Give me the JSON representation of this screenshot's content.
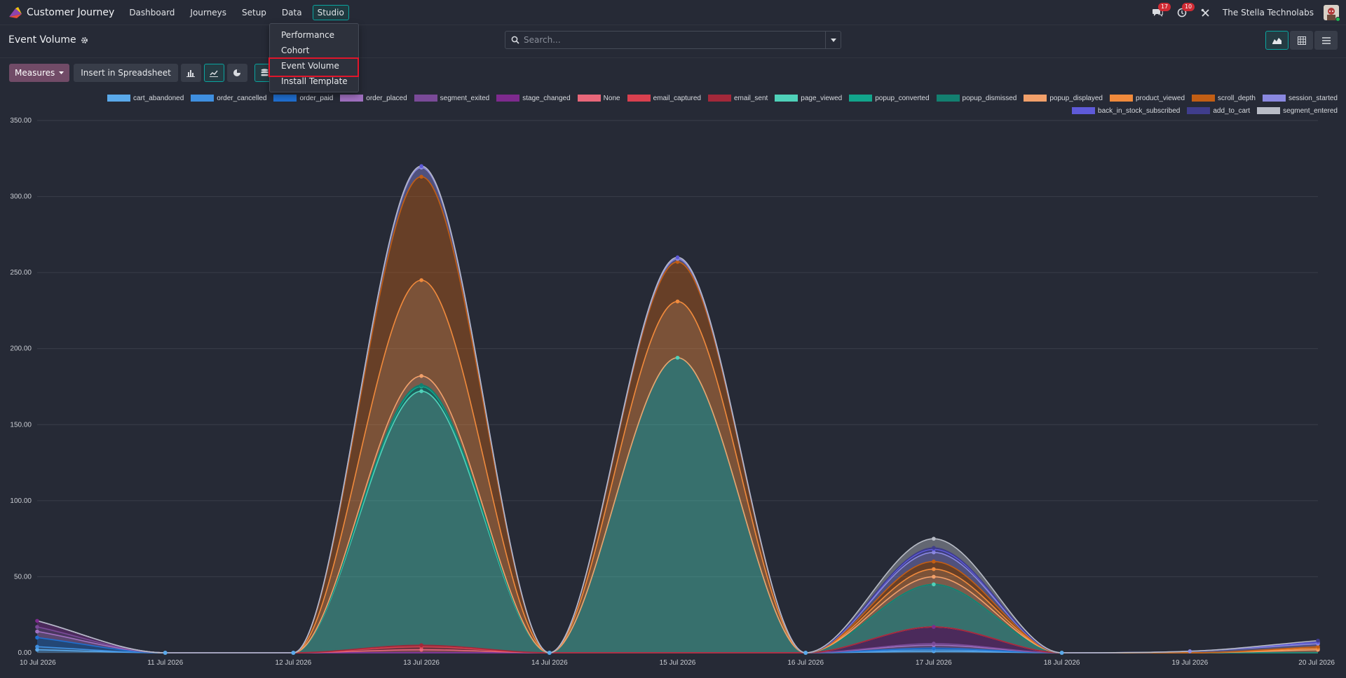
{
  "topbar": {
    "app_name": "Customer Journey",
    "nav": [
      "Dashboard",
      "Journeys",
      "Setup",
      "Data",
      "Studio"
    ],
    "messages_badge": "17",
    "activity_badge": "10",
    "company": "The Stella Technolabs"
  },
  "studio_menu": {
    "items": [
      "Performance",
      "Cohort",
      "Event Volume",
      "Install Template"
    ],
    "highlighted": "Event Volume"
  },
  "control_panel": {
    "title": "Event Volume",
    "search_placeholder": "Search..."
  },
  "toolbar": {
    "measures_label": "Measures",
    "insert_label": "Insert in Spreadsheet"
  },
  "colors": {
    "accent": "#0aa5a0",
    "primary_button": "#714b67",
    "highlight_box": "#e0162b",
    "badge": "#d02b34"
  },
  "chart_data": {
    "type": "area",
    "stacked": true,
    "smooth": true,
    "grid": true,
    "legend_position": "top-right",
    "x": [
      "10 Jul 2026",
      "11 Jul 2026",
      "12 Jul 2026",
      "13 Jul 2026",
      "14 Jul 2026",
      "15 Jul 2026",
      "16 Jul 2026",
      "17 Jul 2026",
      "18 Jul 2026",
      "19 Jul 2026",
      "20 Jul 2026"
    ],
    "ylim": [
      0,
      350
    ],
    "yticks": [
      "0.00",
      "50.00",
      "100.00",
      "150.00",
      "200.00",
      "250.00",
      "300.00",
      "350.00"
    ],
    "series": [
      {
        "name": "cart_abandoned",
        "color": "#5aa9ea",
        "values": [
          2,
          0,
          0,
          0,
          0,
          0,
          0,
          1,
          0,
          0,
          0
        ]
      },
      {
        "name": "order_cancelled",
        "color": "#3f8fe0",
        "values": [
          2,
          0,
          0,
          0,
          0,
          0,
          0,
          1,
          0,
          0,
          0
        ]
      },
      {
        "name": "order_paid",
        "color": "#1f6fd0",
        "values": [
          6,
          0,
          0,
          0,
          0,
          0,
          0,
          1,
          0,
          0,
          0
        ]
      },
      {
        "name": "order_placed",
        "color": "#a070c0",
        "values": [
          4,
          0,
          0,
          0,
          0,
          0,
          0,
          2,
          0,
          0,
          0
        ]
      },
      {
        "name": "segment_exited",
        "color": "#7a4a98",
        "values": [
          3,
          0,
          0,
          0,
          0,
          0,
          0,
          1,
          0,
          0,
          0
        ]
      },
      {
        "name": "stage_changed",
        "color": "#7e2a8e",
        "values": [
          4,
          0,
          0,
          0,
          0,
          0,
          0,
          11,
          0,
          0,
          0
        ]
      },
      {
        "name": "None",
        "color": "#e8677a",
        "values": [
          0,
          0,
          0,
          2,
          0,
          0,
          0,
          0,
          0,
          0,
          0
        ]
      },
      {
        "name": "email_captured",
        "color": "#d9404f",
        "values": [
          0,
          0,
          0,
          2,
          0,
          0,
          0,
          0,
          0,
          0,
          0
        ]
      },
      {
        "name": "email_sent",
        "color": "#a3283a",
        "values": [
          0,
          0,
          0,
          1,
          0,
          0,
          0,
          0,
          0,
          0,
          0
        ]
      },
      {
        "name": "page_viewed",
        "color": "#4fd1b9",
        "values": [
          0,
          0,
          0,
          167,
          0,
          194,
          0,
          28,
          0,
          0,
          0
        ]
      },
      {
        "name": "popup_converted",
        "color": "#12a58c",
        "values": [
          0,
          0,
          0,
          3,
          0,
          0,
          0,
          0,
          0,
          0,
          0
        ]
      },
      {
        "name": "popup_dismissed",
        "color": "#138070",
        "values": [
          0,
          0,
          0,
          1,
          0,
          0,
          0,
          0,
          0,
          0,
          0
        ]
      },
      {
        "name": "popup_displayed",
        "color": "#f2a06a",
        "values": [
          0,
          0,
          0,
          6,
          0,
          0,
          0,
          5,
          0,
          0,
          2
        ]
      },
      {
        "name": "product_viewed",
        "color": "#f08a3c",
        "values": [
          0,
          0,
          0,
          63,
          0,
          37,
          0,
          5,
          0,
          0,
          1
        ]
      },
      {
        "name": "scroll_depth",
        "color": "#c25e14",
        "values": [
          0,
          0,
          0,
          68,
          0,
          26,
          0,
          5,
          0,
          0,
          1
        ]
      },
      {
        "name": "session_started",
        "color": "#8a88e0",
        "values": [
          0,
          0,
          0,
          6,
          0,
          2,
          0,
          6,
          0,
          1,
          2
        ]
      },
      {
        "name": "back_in_stock_subscribed",
        "color": "#5e5ad8",
        "values": [
          0,
          0,
          0,
          1,
          0,
          1,
          0,
          2,
          0,
          0,
          1
        ]
      },
      {
        "name": "add_to_cart",
        "color": "#3f3d8c",
        "values": [
          0,
          0,
          0,
          0,
          0,
          0,
          0,
          1,
          0,
          0,
          1
        ]
      },
      {
        "name": "segment_entered",
        "color": "#b8bcc6",
        "values": [
          0,
          0,
          0,
          0,
          0,
          0,
          0,
          6,
          0,
          0,
          0
        ]
      }
    ]
  }
}
